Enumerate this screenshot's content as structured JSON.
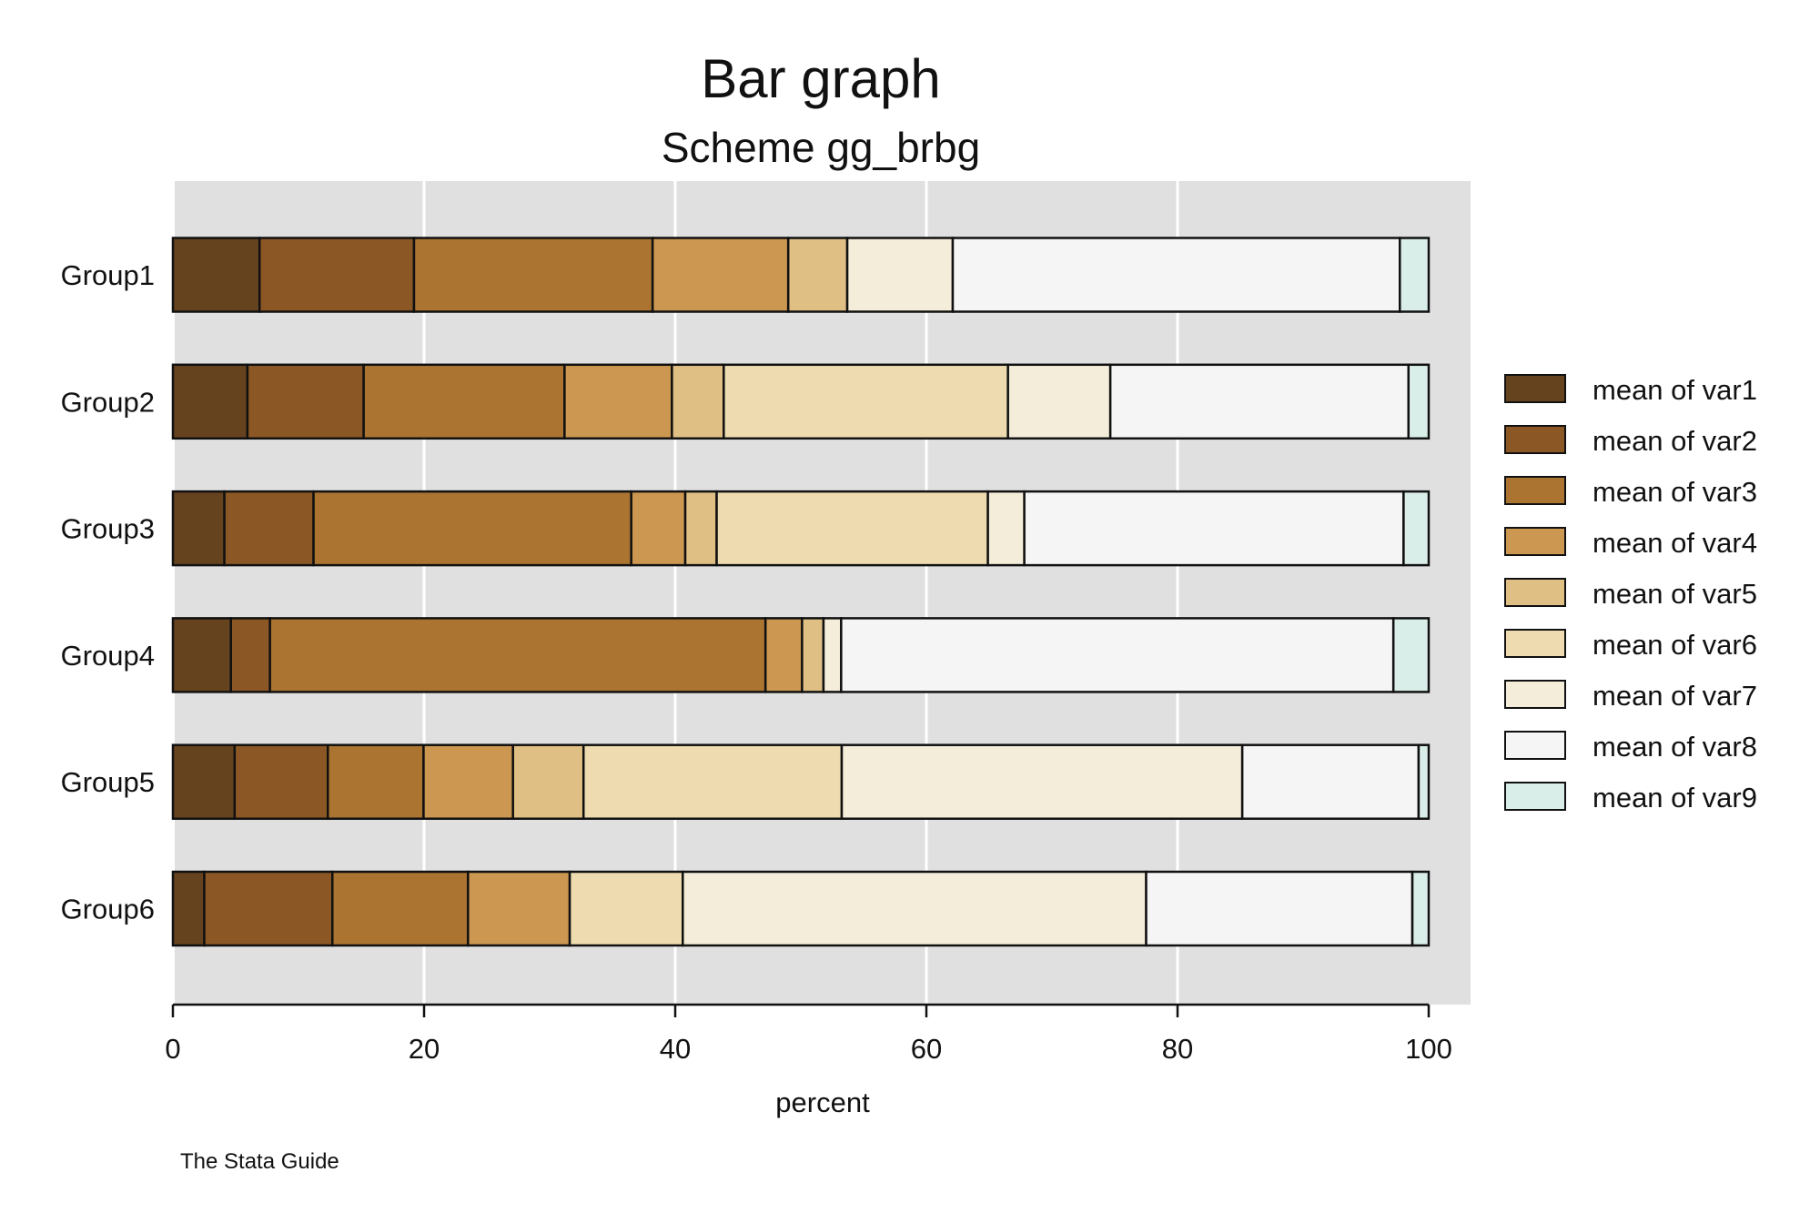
{
  "chart_data": {
    "type": "bar",
    "orientation": "horizontal",
    "stacked": true,
    "title": "Bar graph",
    "subtitle": "Scheme gg_brbg",
    "xlabel": "percent",
    "ylabel": "",
    "xlim": [
      0,
      100
    ],
    "xticks": [
      0,
      20,
      40,
      60,
      80,
      100
    ],
    "grid": true,
    "legend_position": "right",
    "note": "The Stata Guide",
    "background_color": "#e0e0e0",
    "categories": [
      "Group1",
      "Group2",
      "Group3",
      "Group4",
      "Group5",
      "Group6"
    ],
    "series": [
      {
        "name": "mean of var1",
        "color": "#66431f",
        "values": [
          6.9,
          5.9,
          4.1,
          4.6,
          4.9,
          2.5
        ]
      },
      {
        "name": "mean of var2",
        "color": "#8b5724",
        "values": [
          12.3,
          9.2,
          7.1,
          3.1,
          7.4,
          10.2
        ]
      },
      {
        "name": "mean of var3",
        "color": "#ab7431",
        "values": [
          19.0,
          15.9,
          25.3,
          39.3,
          7.6,
          10.8
        ]
      },
      {
        "name": "mean of var4",
        "color": "#cc9750",
        "values": [
          10.8,
          8.5,
          4.3,
          2.9,
          7.1,
          8.1
        ]
      },
      {
        "name": "mean of var5",
        "color": "#dfbf84",
        "values": [
          4.7,
          4.1,
          2.5,
          1.7,
          5.6,
          0.0
        ]
      },
      {
        "name": "mean of var6",
        "color": "#eedcb0",
        "values": [
          0.0,
          22.5,
          21.6,
          0.0,
          20.5,
          9.0
        ]
      },
      {
        "name": "mean of var7",
        "color": "#f4edd9",
        "values": [
          8.4,
          8.1,
          2.9,
          1.4,
          31.8,
          36.9
        ]
      },
      {
        "name": "mean of var8",
        "color": "#f5f5f5",
        "values": [
          35.6,
          23.6,
          30.2,
          43.8,
          14.0,
          21.2
        ]
      },
      {
        "name": "mean of var9",
        "color": "#d9ede9",
        "values": [
          2.3,
          1.6,
          2.0,
          2.8,
          0.8,
          1.3
        ]
      }
    ]
  }
}
